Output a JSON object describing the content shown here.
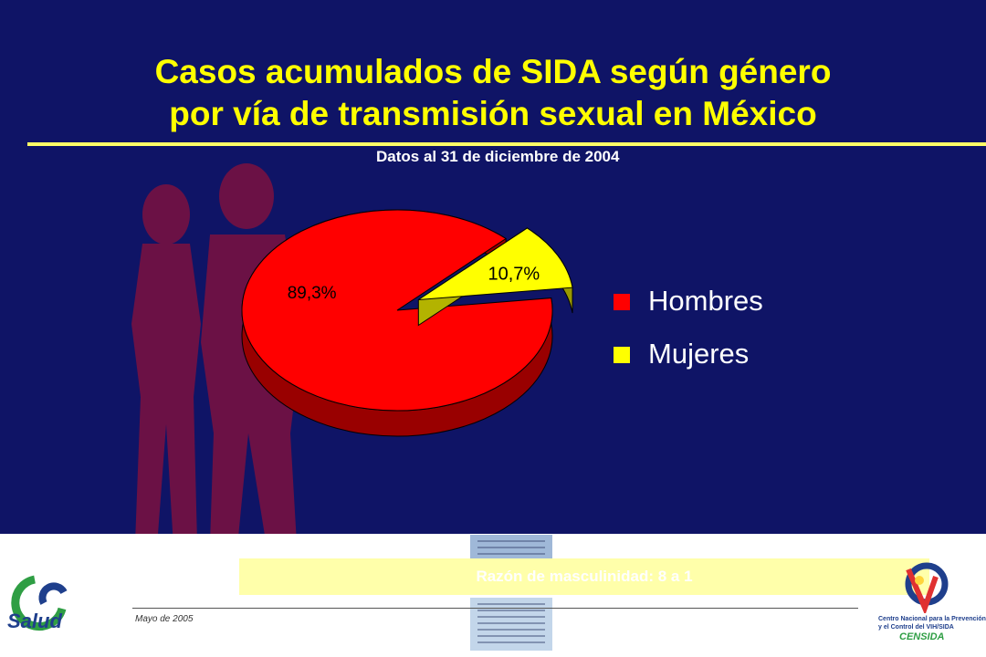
{
  "slide": {
    "title_line1": "Casos acumulados de SIDA según género",
    "title_line2": "por vía de transmisión sexual en México",
    "subtitle": "Datos al 31 de diciembre de 2004",
    "ratio_text": "Razón de masculinidad: 8 a 1",
    "footer_date": "Mayo de 2005",
    "background_color": "#0f1466",
    "title_color": "#ffff00"
  },
  "logos": {
    "left_text": "Salud",
    "right_desc": "Centro Nacional para la Prevención y el Control del VIH/SIDA",
    "right_text": "CENSIDA"
  },
  "chart_data": {
    "type": "pie",
    "categories": [
      "Hombres",
      "Mujeres"
    ],
    "values": [
      89.3,
      10.7
    ],
    "value_labels": [
      "89,3%",
      "10,7%"
    ],
    "colors": [
      "#ff0000",
      "#ffff00"
    ],
    "exploded": "Mujeres",
    "style": "3d",
    "legend_position": "right"
  }
}
